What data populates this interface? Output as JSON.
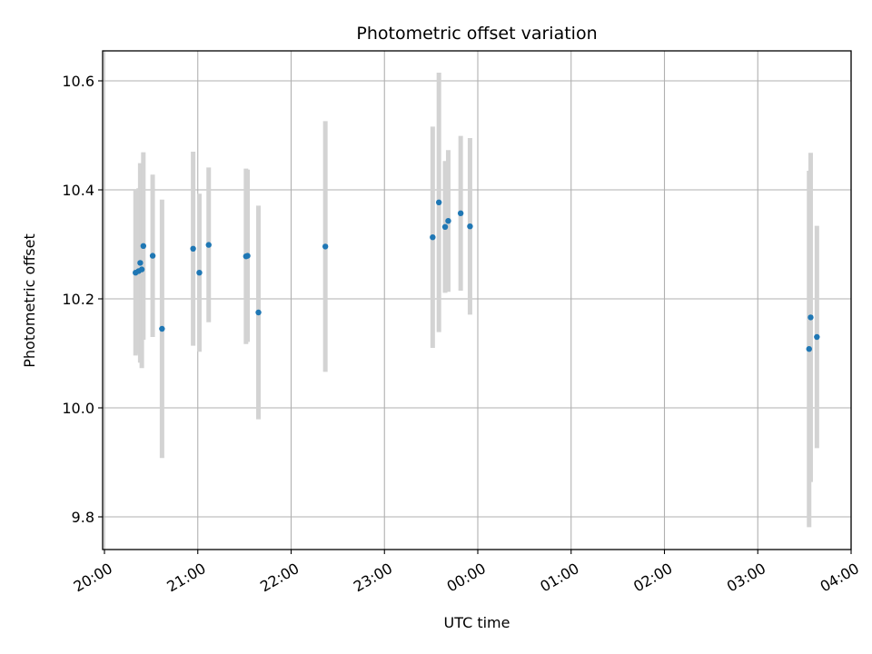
{
  "chart_data": {
    "type": "scatter",
    "title": "Photometric offset variation",
    "xlabel": "UTC time",
    "ylabel": "Photometric offset",
    "xlim": [
      "20:00",
      "04:00"
    ],
    "ylim": [
      9.74,
      10.655
    ],
    "x_ticks": [
      "20:00",
      "21:00",
      "22:00",
      "23:00",
      "00:00",
      "01:00",
      "02:00",
      "03:00",
      "04:00"
    ],
    "y_ticks": [
      "9.8",
      "10.0",
      "10.2",
      "10.4",
      "10.6"
    ],
    "grid": true,
    "colors": {
      "point": "#1f77b4",
      "errorbar": "#d3d3d3",
      "grid": "#b0b0b0"
    },
    "points": [
      {
        "x": "20:20",
        "y": 10.248,
        "yerr": 0.152
      },
      {
        "x": "20:22",
        "y": 10.251,
        "yerr": 0.152
      },
      {
        "x": "20:23",
        "y": 10.266,
        "yerr": 0.183
      },
      {
        "x": "20:24",
        "y": 10.254,
        "yerr": 0.181
      },
      {
        "x": "20:25",
        "y": 10.297,
        "yerr": 0.172
      },
      {
        "x": "20:31",
        "y": 10.279,
        "yerr": 0.149
      },
      {
        "x": "20:37",
        "y": 10.145,
        "yerr": 0.237
      },
      {
        "x": "20:57",
        "y": 10.292,
        "yerr": 0.178
      },
      {
        "x": "21:01",
        "y": 10.248,
        "yerr": 0.145
      },
      {
        "x": "21:07",
        "y": 10.299,
        "yerr": 0.142
      },
      {
        "x": "21:31",
        "y": 10.278,
        "yerr": 0.161
      },
      {
        "x": "21:32",
        "y": 10.279,
        "yerr": 0.158
      },
      {
        "x": "21:39",
        "y": 10.175,
        "yerr": 0.196
      },
      {
        "x": "22:22",
        "y": 10.296,
        "yerr": 0.23
      },
      {
        "x": "23:31",
        "y": 10.313,
        "yerr": 0.203
      },
      {
        "x": "23:35",
        "y": 10.377,
        "yerr": 0.238
      },
      {
        "x": "23:39",
        "y": 10.332,
        "yerr": 0.121
      },
      {
        "x": "23:41",
        "y": 10.343,
        "yerr": 0.13
      },
      {
        "x": "23:49",
        "y": 10.357,
        "yerr": 0.142
      },
      {
        "x": "23:55",
        "y": 10.333,
        "yerr": 0.162
      },
      {
        "x": "03:33",
        "y": 10.108,
        "yerr": 0.327
      },
      {
        "x": "03:34",
        "y": 10.166,
        "yerr": 0.302
      },
      {
        "x": "03:38",
        "y": 10.13,
        "yerr": 0.204
      }
    ]
  }
}
